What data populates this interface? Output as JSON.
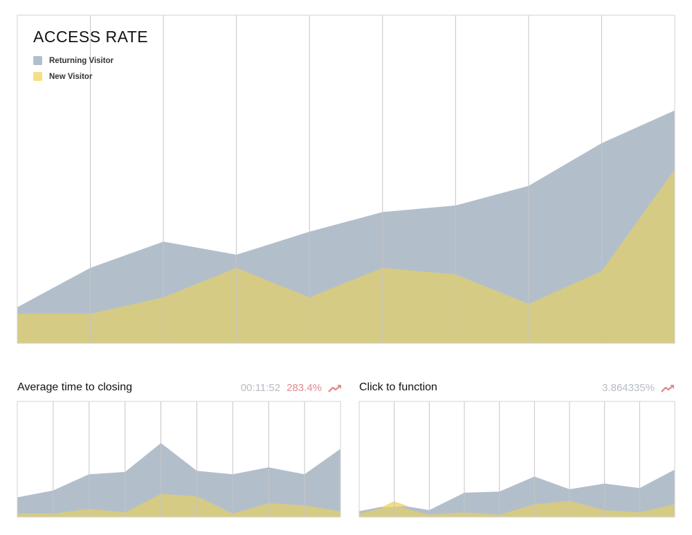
{
  "colors": {
    "returning": "#b2bfcb",
    "new": "#d6cb84",
    "new_highlight": "#f2dd86",
    "grid": "#c4c4c4",
    "frame": "#d2d2d2",
    "trend": "#e38a8f"
  },
  "main_chart": {
    "title": "ACCESS RATE",
    "legend": [
      {
        "label": "Returning Visitor",
        "swatch": "#b2bfcb"
      },
      {
        "label": "New Visitor",
        "swatch": "#f5df86"
      }
    ]
  },
  "bottom_left": {
    "title": "Average time to closing",
    "time": "00:11:52",
    "percent": "283.4%",
    "trend_icon": "trend-up-icon"
  },
  "bottom_right": {
    "title": "Click to function",
    "value": "3.864335%",
    "trend_icon": "trend-up-icon"
  },
  "chart_data": [
    {
      "type": "area",
      "title": "ACCESS RATE",
      "x_count": 10,
      "ylim": [
        0,
        100
      ],
      "grid": true,
      "legend_position": "top-left",
      "series": [
        {
          "name": "Returning Visitor",
          "values": [
            11,
            23,
            31,
            27,
            34,
            40,
            42,
            48,
            61,
            71
          ]
        },
        {
          "name": "New Visitor",
          "values": [
            9,
            9,
            14,
            23,
            14,
            23,
            21,
            12,
            22,
            53
          ]
        }
      ]
    },
    {
      "type": "area",
      "title": "Average time to closing",
      "x_count": 10,
      "ylim": [
        0,
        100
      ],
      "grid": true,
      "series": [
        {
          "values": [
            17,
            23,
            37,
            39,
            64,
            40,
            37,
            43,
            37,
            59
          ]
        },
        {
          "values": [
            3,
            3,
            7,
            4,
            20,
            18,
            3,
            12,
            10,
            5
          ]
        }
      ]
    },
    {
      "type": "area",
      "title": "Click to function",
      "x_count": 10,
      "ylim": [
        0,
        100
      ],
      "grid": true,
      "series": [
        {
          "values": [
            5,
            11,
            6,
            21,
            22,
            35,
            24,
            29,
            25,
            41
          ]
        },
        {
          "values": [
            3,
            10,
            2,
            4,
            2,
            11,
            14,
            6,
            4,
            11
          ]
        }
      ]
    }
  ]
}
